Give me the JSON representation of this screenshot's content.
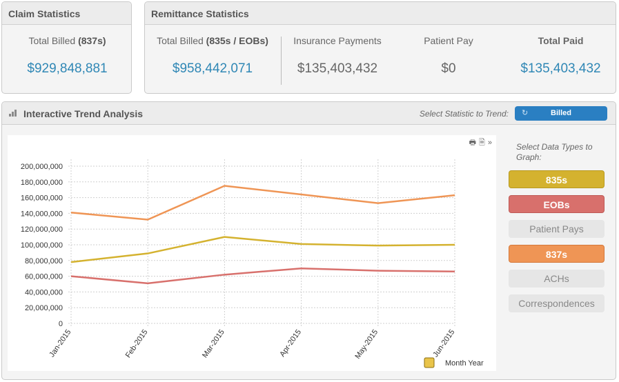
{
  "claim": {
    "title": "Claim Statistics",
    "label_prefix": "Total Billed ",
    "label_bold": "(837s)",
    "value": "$929,848,881"
  },
  "remittance": {
    "title": "Remittance Statistics",
    "stats": [
      {
        "label_prefix": "Total Billed ",
        "label_bold": "(835s / EOBs)",
        "value": "$958,442,071"
      },
      {
        "label": "Insurance Payments",
        "value": "$135,403,432"
      },
      {
        "label": "Patient Pay",
        "value": "$0"
      },
      {
        "label": "Total Paid",
        "value": "$135,403,432"
      }
    ]
  },
  "trend": {
    "title": "Interactive Trend Analysis",
    "select_label": "Select Statistic to Trend:",
    "select_value": "Billed",
    "data_types_title": "Select Data Types to Graph:",
    "data_types": [
      {
        "label": "835s",
        "active": true
      },
      {
        "label": "EOBs",
        "active": true
      },
      {
        "label": "Patient Pays",
        "active": false
      },
      {
        "label": "837s",
        "active": true
      },
      {
        "label": "ACHs",
        "active": false
      },
      {
        "label": "Correspondences",
        "active": false
      }
    ],
    "x_axis_title": "Month Year"
  },
  "chart_data": {
    "type": "line",
    "categories": [
      "Jan-2015",
      "Feb-2015",
      "Mar-2015",
      "Apr-2015",
      "May-2015",
      "Jun-2015"
    ],
    "ylim": [
      0,
      200000000
    ],
    "y_ticks": [
      "200,000,000",
      "180,000,000",
      "160,000,000",
      "140,000,000",
      "120,000,000",
      "100,000,000",
      "80,000,000",
      "60,000,000",
      "40,000,000",
      "20,000,000",
      "0"
    ],
    "y_tick_values": [
      200000000,
      180000000,
      160000000,
      140000000,
      120000000,
      100000000,
      80000000,
      60000000,
      40000000,
      20000000,
      0
    ],
    "xlabel": "Month Year",
    "grid": true,
    "series": [
      {
        "name": "837s",
        "color": "#ef9555",
        "values": [
          141000000,
          132000000,
          175000000,
          164000000,
          153000000,
          163000000
        ]
      },
      {
        "name": "835s",
        "color": "#d4b22f",
        "values": [
          78000000,
          89000000,
          110000000,
          101000000,
          99000000,
          100000000
        ]
      },
      {
        "name": "EOBs",
        "color": "#d8706c",
        "values": [
          60000000,
          51000000,
          62000000,
          70000000,
          67000000,
          66000000
        ]
      }
    ]
  }
}
